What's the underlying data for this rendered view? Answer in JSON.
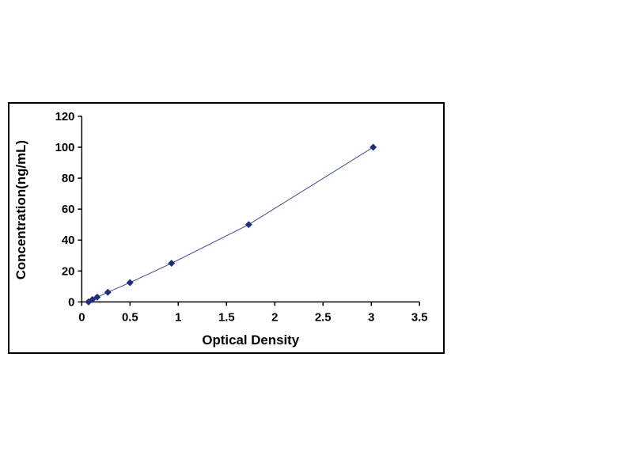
{
  "page": {
    "background": "#ffffff"
  },
  "chart_data": {
    "type": "line",
    "title": "",
    "xlabel": "Optical Density",
    "ylabel": "Concentration(ng/mL)",
    "x": [
      0.07,
      0.11,
      0.16,
      0.27,
      0.5,
      0.93,
      1.73,
      3.02
    ],
    "y": [
      0,
      1.56,
      3.12,
      6.25,
      12.5,
      25,
      50,
      100
    ],
    "xlim": [
      0,
      3.5
    ],
    "ylim": [
      0,
      120
    ],
    "xticks": [
      0,
      0.5,
      1,
      1.5,
      2,
      2.5,
      3,
      3.5
    ],
    "xtick_labels": [
      "0",
      "0.5",
      "1",
      "1.5",
      "2",
      "2.5",
      "3",
      "3.5"
    ],
    "yticks": [
      0,
      20,
      40,
      60,
      80,
      100,
      120
    ],
    "ytick_labels": [
      "0",
      "20",
      "40",
      "60",
      "80",
      "100",
      "120"
    ],
    "grid": false,
    "legend": "none",
    "marker": "diamond",
    "line_color": "#3a4a8c",
    "marker_color": "#1f2d7a",
    "axis_color": "#000000",
    "frame_border_color": "#000000"
  }
}
